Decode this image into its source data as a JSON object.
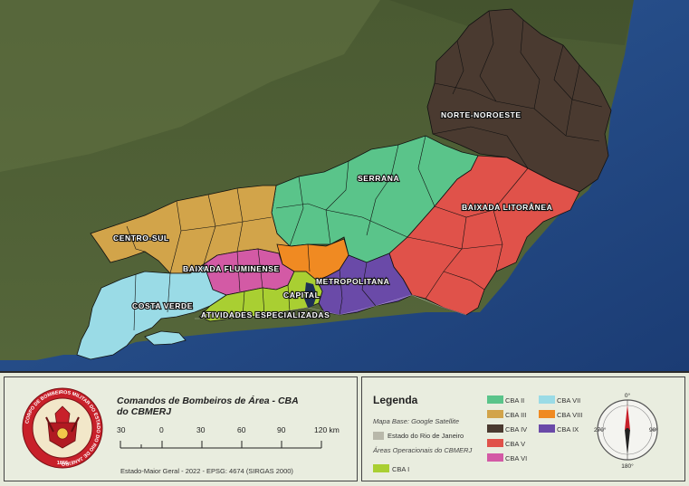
{
  "map": {
    "regions": {
      "norte_noroeste": "NORTE-NOROESTE",
      "serrana": "SERRANA",
      "baixada_litoranea": "BAIXADA LITORÂNEA",
      "centro_sul": "CENTRO-SUL",
      "baixada_fluminense": "BAIXADA FLUMINENSE",
      "metropolitana": "METROPOLITANA",
      "capital": "CAPITAL",
      "costa_verde": "COSTA VERDE",
      "atividades_especializadas": "ATIVIDADES ESPECIALIZADAS"
    }
  },
  "title_block": {
    "title_line1": "Comandos de Bombeiros de Área - CBA",
    "title_line2": "do CBMERJ",
    "scale": [
      "30",
      "0",
      "30",
      "60",
      "90",
      "120 km"
    ],
    "credits": "Estado-Maior Geral - 2022 - EPSG: 4674 (SIRGAS 2000)",
    "seal_ring_text": "CORPO DE BOMBEIROS MILITAR DO ESTADO DO RIO DE JANEIRO",
    "seal_year": "1856"
  },
  "legend": {
    "title": "Legenda",
    "basemap": "Mapa Base: Google Satellite",
    "state": "Estado do Rio de Janeiro",
    "areas_heading": "Áreas Operacionais do CBMERJ",
    "items": [
      {
        "label": "CBA I",
        "color": "#a9cf32"
      },
      {
        "label": "CBA II",
        "color": "#5ac48a"
      },
      {
        "label": "CBA III",
        "color": "#d2a44a"
      },
      {
        "label": "CBA IV",
        "color": "#4a3a30"
      },
      {
        "label": "CBA V",
        "color": "#e0524a"
      },
      {
        "label": "CBA VI",
        "color": "#d35aa5"
      },
      {
        "label": "CBA VII",
        "color": "#9adbe6"
      },
      {
        "label": "CBA VIII",
        "color": "#f08a22"
      },
      {
        "label": "CBA IX",
        "color": "#6a4aa8"
      }
    ],
    "state_color": "#b8b8aa"
  },
  "compass": {
    "n": "0°",
    "e": "90°",
    "s": "180°",
    "w": "270°"
  }
}
